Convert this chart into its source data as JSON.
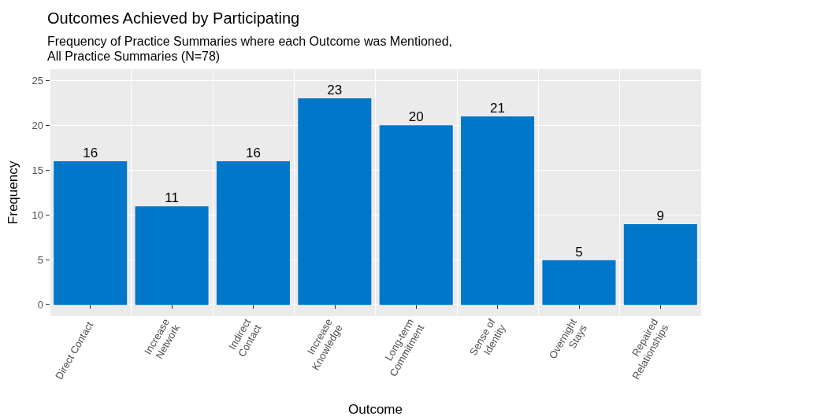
{
  "chart_data": {
    "type": "bar",
    "title": "Outcomes Achieved by Participating",
    "subtitle": "Frequency of Practice Summaries where each Outcome was Mentioned,\nAll Practice Summaries (N=78)",
    "xlabel": "Outcome",
    "ylabel": "Frequency",
    "categories": [
      "Direct Contact",
      "Increase\nNetwork",
      "Indirect\nContact",
      "Increase\nKnowledge",
      "Long-term\nCommitment",
      "Sense of\nIdentity",
      "Overnight\nStays",
      "Repaired\nRelationships"
    ],
    "values": [
      16,
      11,
      16,
      23,
      20,
      21,
      5,
      9
    ],
    "color": "#0077c8",
    "ylim": [
      -1.25,
      26.25
    ],
    "yticks": [
      0,
      5,
      10,
      15,
      20,
      25
    ],
    "grid": true,
    "data_labels": true
  }
}
